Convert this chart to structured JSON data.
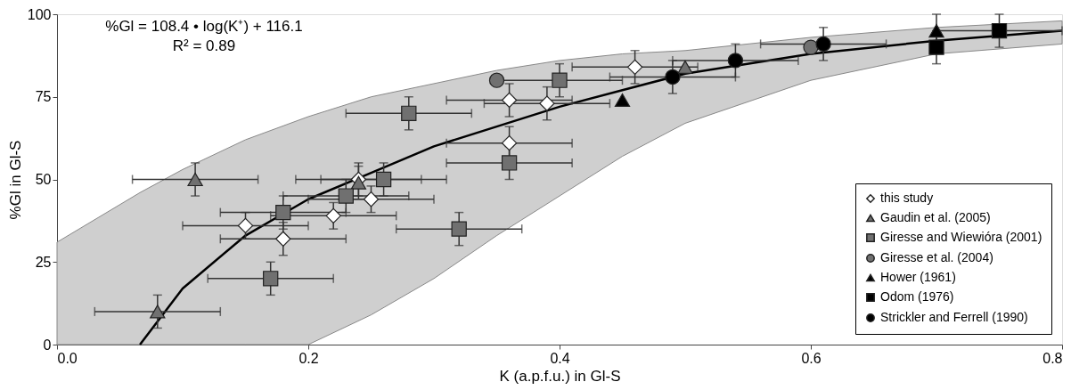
{
  "chart_data": {
    "type": "scatter",
    "xlabel": "K (a.p.f.u.) in Gl-S",
    "ylabel": "%Gl in Gl-S",
    "annotations": [
      "%Gl = 108.4 • log(K⁺) + 116.1",
      "R² = 0.89"
    ],
    "xlim": [
      0,
      0.8
    ],
    "ylim": [
      0,
      100
    ],
    "xticks": [
      {
        "value": 0,
        "label": "0.0"
      },
      0.2,
      0.4,
      0.6,
      0.8
    ],
    "yticks": [
      0,
      25,
      50,
      75,
      100
    ],
    "grid": false,
    "legend": "bottom right",
    "series": [
      {
        "name": "this study",
        "color": "#ffffff",
        "marker": "diamond",
        "x": [
          0.15,
          0.18,
          0.22,
          0.24,
          0.25,
          0.36,
          0.36,
          0.39,
          0.46
        ],
        "values": [
          36,
          32,
          39,
          50,
          44,
          61,
          74,
          73,
          84
        ],
        "errors": [
          4,
          5,
          4,
          5,
          4,
          5,
          5,
          5,
          5
        ],
        "xerrors": [
          0.05,
          0.05,
          0.05,
          0.05,
          0.05,
          0.05,
          0.05,
          0.05,
          0.05
        ]
      },
      {
        "name": "Gaudin et al. (2005)",
        "color": "#707070",
        "marker": "triangle",
        "x": [
          0.08,
          0.11,
          0.24,
          0.5
        ],
        "values": [
          10,
          50,
          49,
          84
        ],
        "errors": [
          5,
          5,
          5,
          null
        ],
        "xerrors": [
          0.05,
          0.05,
          null,
          null
        ]
      },
      {
        "name": "Giresse and Wiewióra (2001)",
        "color": "#707070",
        "marker": "square",
        "x": [
          0.17,
          0.18,
          0.23,
          0.26,
          0.28,
          0.32,
          0.36,
          0.4
        ],
        "values": [
          20,
          40,
          45,
          50,
          70,
          35,
          55,
          80
        ],
        "errors": [
          5,
          5,
          5,
          5,
          5,
          5,
          5,
          5
        ],
        "xerrors": [
          0.05,
          0.05,
          0.05,
          0.05,
          0.05,
          0.05,
          0.05,
          0.05
        ]
      },
      {
        "name": "Giresse et al. (2004)",
        "color": "#707070",
        "marker": "circle",
        "x": [
          0.35,
          0.6
        ],
        "values": [
          80,
          90
        ],
        "errors": [
          null,
          null
        ],
        "xerrors": [
          null,
          null
        ]
      },
      {
        "name": "Hower (1961)",
        "color": "#000000",
        "marker": "triangle",
        "x": [
          0.45,
          0.7
        ],
        "values": [
          74,
          95
        ],
        "errors": [
          null,
          5
        ],
        "xerrors": [
          null,
          null
        ]
      },
      {
        "name": "Odom (1976)",
        "color": "#000000",
        "marker": "square",
        "x": [
          0.7,
          0.75
        ],
        "values": [
          90,
          95
        ],
        "errors": [
          5,
          5
        ],
        "xerrors": [
          null,
          0.05
        ]
      },
      {
        "name": "Strickler and Ferrell (1990)",
        "color": "#000000",
        "marker": "circle",
        "x": [
          0.49,
          0.54,
          0.61
        ],
        "values": [
          81,
          86,
          91
        ],
        "errors": [
          5,
          5,
          5
        ],
        "xerrors": [
          0.05,
          0.05,
          0.05
        ]
      },
      {
        "type": "line",
        "color": "#000000",
        "x": [
          0,
          0.066,
          0.1,
          0.15,
          0.2,
          0.25,
          0.3,
          0.35,
          0.4,
          0.45,
          0.5,
          0.6,
          0.7,
          0.8
        ],
        "values": [
          null,
          0,
          17,
          33,
          44,
          52,
          60,
          66,
          72,
          77,
          82,
          88,
          92,
          95
        ],
        "lower": [
          0,
          0,
          0,
          0,
          0,
          9,
          20,
          33,
          45,
          57,
          67,
          80,
          88,
          91
        ],
        "upper": [
          31,
          46,
          53,
          62,
          69,
          75,
          79,
          83,
          86,
          88,
          89,
          93,
          96,
          98
        ]
      }
    ]
  }
}
